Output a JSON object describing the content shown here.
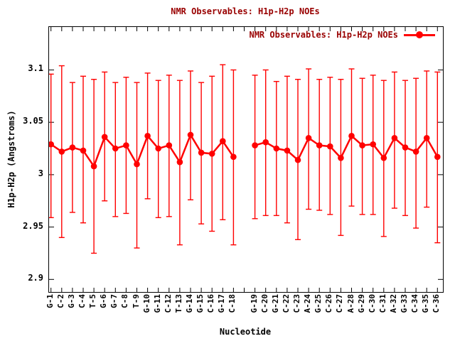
{
  "window": {
    "background": "#ffffff"
  },
  "colors": {
    "series": "#ff0000",
    "title_text": "#990000",
    "axis_text": "#000000",
    "plot_border": "#000000",
    "background": "#ffffff"
  },
  "chart_data": {
    "type": "line",
    "title": "NMR Observables: H1p-H2p NOEs",
    "xlabel": "Nucleotide",
    "ylabel": "H1p-H2p (Angstroms)",
    "ylim": [
      2.888,
      3.141
    ],
    "yticks": [
      3.1,
      3.05,
      3.0,
      2.95,
      2.9
    ],
    "ytick_labels": [
      "3.1",
      "3.05",
      "3",
      "2.95",
      "2.9"
    ],
    "grid": false,
    "legend_position": "top-right-inside",
    "marker": "filled-circle",
    "error_bars": true,
    "gap_after_index": 17,
    "categories": [
      "G-1",
      "C-2",
      "G-3",
      "C-4",
      "T-5",
      "G-6",
      "G-7",
      "C-8",
      "T-9",
      "G-10",
      "G-11",
      "C-12",
      "T-13",
      "G-14",
      "G-15",
      "C-16",
      "G-17",
      "C-18",
      "G-19",
      "C-20",
      "G-21",
      "C-22",
      "C-23",
      "A-24",
      "G-25",
      "C-26",
      "C-27",
      "A-28",
      "G-29",
      "C-30",
      "C-31",
      "A-32",
      "G-33",
      "C-34",
      "G-35",
      "C-36"
    ],
    "series": [
      {
        "name": "NMR Observables: H1p-H2p NOEs",
        "color": "#ff0000",
        "values": [
          3.029,
          3.022,
          3.026,
          3.023,
          3.008,
          3.036,
          3.025,
          3.028,
          3.01,
          3.037,
          3.025,
          3.028,
          3.012,
          3.038,
          3.021,
          3.02,
          3.032,
          3.017,
          3.028,
          3.031,
          3.025,
          3.023,
          3.014,
          3.035,
          3.028,
          3.027,
          3.016,
          3.037,
          3.028,
          3.029,
          3.016,
          3.035,
          3.026,
          3.022,
          3.035,
          3.017
        ],
        "upper": [
          3.096,
          3.104,
          3.088,
          3.094,
          3.091,
          3.098,
          3.088,
          3.093,
          3.088,
          3.097,
          3.09,
          3.095,
          3.09,
          3.099,
          3.088,
          3.094,
          3.105,
          3.1,
          3.095,
          3.1,
          3.089,
          3.094,
          3.091,
          3.101,
          3.091,
          3.093,
          3.091,
          3.101,
          3.092,
          3.095,
          3.09,
          3.098,
          3.09,
          3.092,
          3.099,
          3.098
        ],
        "lower": [
          2.959,
          2.94,
          2.964,
          2.954,
          2.925,
          2.975,
          2.96,
          2.963,
          2.93,
          2.977,
          2.959,
          2.96,
          2.933,
          2.976,
          2.953,
          2.946,
          2.957,
          2.933,
          2.958,
          2.961,
          2.961,
          2.954,
          2.938,
          2.967,
          2.966,
          2.962,
          2.942,
          2.97,
          2.962,
          2.962,
          2.941,
          2.968,
          2.961,
          2.949,
          2.969,
          2.935
        ]
      }
    ]
  }
}
